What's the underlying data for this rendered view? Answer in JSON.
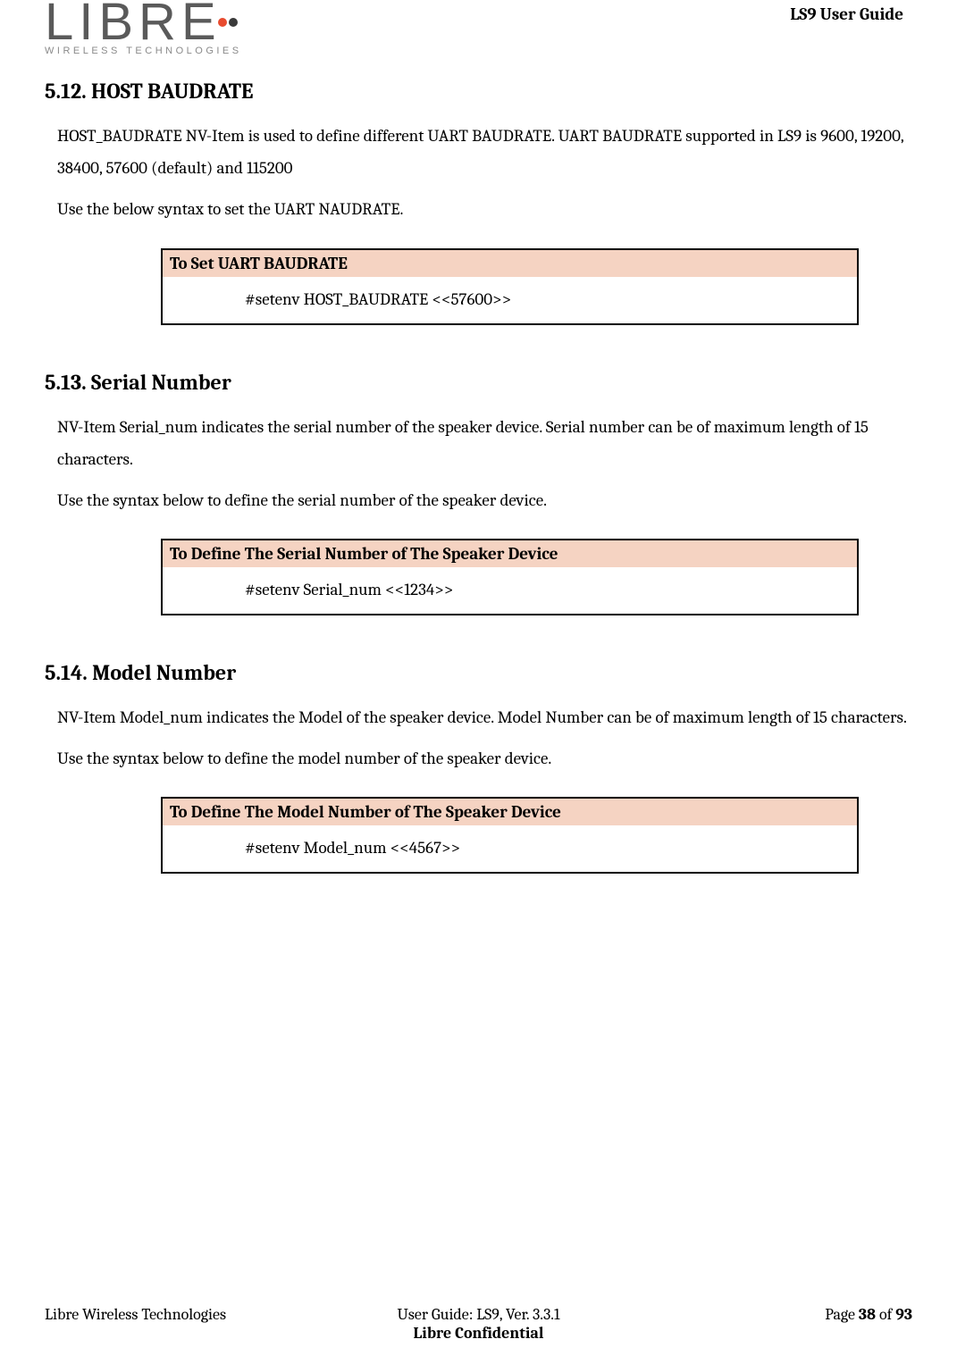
{
  "header": {
    "logo_main": "LIBRE",
    "logo_sub": "WIRELESS TECHNOLOGIES",
    "title": "LS9 User Guide"
  },
  "sections": [
    {
      "num": "5.12.",
      "title": "HOST BAUDRATE",
      "para1": "HOST_BAUDRATE NV-Item is used to define different UART BAUDRATE.  UART BAUDRATE supported in LS9 is 9600, 19200, 38400, 57600 (default) and 115200",
      "para2": "Use the below syntax to set the UART NAUDRATE.",
      "box_header": "To Set UART BAUDRATE",
      "box_cmd": "#setenv HOST_BAUDRATE <<57600>>"
    },
    {
      "num": "5.13.",
      "title": "Serial Number",
      "para1": "NV-Item Serial_num indicates the serial number of the speaker device. Serial number can be of maximum length of 15 characters.",
      "para2": "Use the syntax below to define the serial number of the speaker device.",
      "box_header": "To Define The Serial Number of The Speaker Device",
      "box_cmd": "#setenv Serial_num <<1234>>"
    },
    {
      "num": "5.14.",
      "title": "Model Number",
      "para1": "NV-Item Model_num indicates the Model of the speaker device. Model Number can be of maximum length of 15 characters.",
      "para2": "Use the syntax below to define the model number of the speaker device.",
      "box_header": "To Define The Model Number of The Speaker Device",
      "box_cmd": "#setenv Model_num <<4567>>"
    }
  ],
  "footer": {
    "left": "Libre Wireless Technologies",
    "center_line1": "User Guide: LS9, Ver. 3.3.1",
    "center_line2": "Libre Confidential",
    "right_prefix": "Page ",
    "right_page": "38",
    "right_middle": " of ",
    "right_total": "93"
  },
  "colors": {
    "box_header_bg": "#f5d3c2",
    "box_border": "#000000",
    "logo_dot_red": "#e84b2f",
    "logo_dot_dark": "#3a3a3a"
  }
}
